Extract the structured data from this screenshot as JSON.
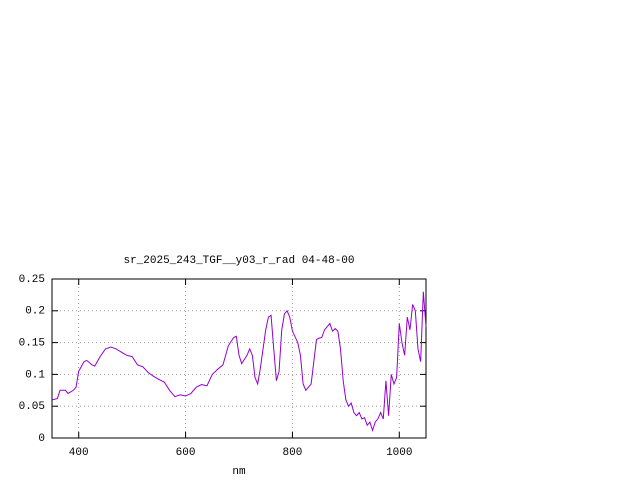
{
  "chart_data": {
    "type": "line",
    "title": "sr_2025_243_TGF__y03_r_rad 04-48-00",
    "x_label": "nm",
    "xlim": [
      350,
      1050
    ],
    "xticks": [
      400,
      600,
      800,
      1000
    ],
    "ylim": [
      0,
      0.25
    ],
    "yticks": [
      0,
      0.05,
      0.1,
      0.15,
      0.2,
      0.25
    ],
    "grid": true,
    "series": [
      {
        "color": "#9400d3",
        "x": [
          350,
          360,
          365,
          375,
          380,
          390,
          395,
          400,
          410,
          415,
          425,
          430,
          440,
          450,
          460,
          470,
          480,
          490,
          500,
          510,
          520,
          530,
          540,
          550,
          560,
          570,
          580,
          590,
          600,
          610,
          620,
          630,
          640,
          650,
          660,
          670,
          680,
          690,
          695,
          700,
          705,
          715,
          720,
          725,
          730,
          735,
          740,
          750,
          755,
          760,
          765,
          770,
          775,
          780,
          785,
          790,
          795,
          800,
          810,
          815,
          820,
          825,
          835,
          840,
          845,
          850,
          855,
          860,
          865,
          870,
          875,
          880,
          885,
          890,
          895,
          900,
          905,
          910,
          915,
          920,
          925,
          930,
          935,
          940,
          945,
          950,
          955,
          960,
          965,
          970,
          975,
          980,
          985,
          990,
          995,
          1000,
          1005,
          1010,
          1015,
          1020,
          1025,
          1030,
          1035,
          1040,
          1045,
          1050
        ],
        "values": [
          0.06,
          0.062,
          0.075,
          0.075,
          0.07,
          0.075,
          0.08,
          0.105,
          0.12,
          0.122,
          0.115,
          0.113,
          0.128,
          0.14,
          0.143,
          0.14,
          0.135,
          0.13,
          0.128,
          0.115,
          0.112,
          0.103,
          0.097,
          0.092,
          0.088,
          0.075,
          0.065,
          0.068,
          0.066,
          0.07,
          0.08,
          0.084,
          0.082,
          0.1,
          0.108,
          0.115,
          0.145,
          0.158,
          0.16,
          0.13,
          0.117,
          0.13,
          0.14,
          0.13,
          0.095,
          0.085,
          0.11,
          0.17,
          0.19,
          0.193,
          0.14,
          0.09,
          0.105,
          0.17,
          0.195,
          0.2,
          0.19,
          0.168,
          0.15,
          0.13,
          0.085,
          0.075,
          0.085,
          0.12,
          0.155,
          0.157,
          0.158,
          0.17,
          0.175,
          0.18,
          0.168,
          0.172,
          0.168,
          0.14,
          0.09,
          0.06,
          0.05,
          0.055,
          0.04,
          0.035,
          0.04,
          0.03,
          0.032,
          0.02,
          0.025,
          0.012,
          0.025,
          0.03,
          0.04,
          0.03,
          0.09,
          0.035,
          0.1,
          0.085,
          0.095,
          0.18,
          0.15,
          0.13,
          0.19,
          0.17,
          0.21,
          0.2,
          0.14,
          0.12,
          0.23,
          0.175
        ]
      }
    ]
  }
}
